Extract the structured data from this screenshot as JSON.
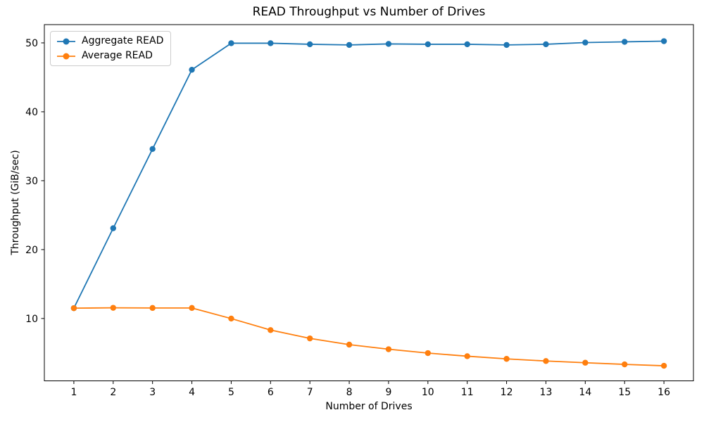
{
  "chart_data": {
    "type": "line",
    "title": "READ Throughput vs Number of Drives",
    "xlabel": "Number of Drives",
    "ylabel": "Throughput (GiB/sec)",
    "x": [
      1,
      2,
      3,
      4,
      5,
      6,
      7,
      8,
      9,
      10,
      11,
      12,
      13,
      14,
      15,
      16
    ],
    "x_tick_labels": [
      "1",
      "2",
      "3",
      "4",
      "5",
      "6",
      "7",
      "8",
      "9",
      "10",
      "11",
      "12",
      "13",
      "14",
      "15",
      "16"
    ],
    "y_tick_values": [
      10,
      20,
      30,
      40,
      50
    ],
    "y_tick_labels": [
      "10",
      "20",
      "30",
      "40",
      "50"
    ],
    "xlim": [
      0.25,
      16.75
    ],
    "ylim": [
      0.95,
      52.65
    ],
    "grid": false,
    "legend_position": "upper-left",
    "series": [
      {
        "name": "Aggregate READ",
        "color": "#1f77b4",
        "marker": "circle",
        "values": [
          11.5,
          23.1,
          34.6,
          46.1,
          49.95,
          49.95,
          49.8,
          49.7,
          49.85,
          49.8,
          49.8,
          49.7,
          49.8,
          50.05,
          50.15,
          50.25
        ]
      },
      {
        "name": "Average READ",
        "color": "#ff7f0e",
        "marker": "circle",
        "values": [
          11.5,
          11.55,
          11.53,
          11.53,
          9.99,
          8.32,
          7.11,
          6.21,
          5.54,
          4.98,
          4.53,
          4.14,
          3.83,
          3.58,
          3.34,
          3.14
        ]
      }
    ]
  }
}
